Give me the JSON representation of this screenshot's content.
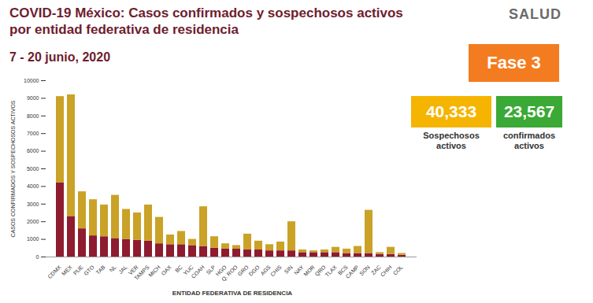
{
  "chart_data": {
    "type": "bar",
    "stacked": true,
    "title": [
      "COVID-19 México: Casos confirmados y sospechosos activos",
      "por entidad federativa de residencia"
    ],
    "subtitle": "7 - 20 junio, 2020",
    "logo": "SALUD",
    "phase": "Fase 3",
    "x_label": "ENTIDAD FEDERATIVA DE RESIDENCIA",
    "y_label": "CASOS CONFIRMADOS Y SOSPECHOSOS ACTIVOS",
    "categories": [
      "CDMX",
      "MEX",
      "PUE",
      "GTO",
      "TAB",
      "NL",
      "JAL",
      "VER",
      "TAMPS",
      "MICH",
      "OAX",
      "BC",
      "YUC",
      "COAH",
      "SLP",
      "HGO",
      "Q. ROO",
      "GRO",
      "DGO",
      "AGS",
      "CHIS",
      "SIN",
      "NAY",
      "MOR",
      "QRO",
      "TLAX",
      "BCS",
      "CAMP",
      "SON",
      "ZAC",
      "CHIH",
      "COL"
    ],
    "series": [
      {
        "name": "confirmados activos",
        "color": "#8e1b2f",
        "total": 23567,
        "total_label": "23,567",
        "values": [
          4200,
          2300,
          1600,
          1200,
          1150,
          1050,
          1000,
          950,
          900,
          750,
          700,
          700,
          650,
          600,
          500,
          450,
          450,
          400,
          400,
          350,
          350,
          350,
          250,
          250,
          250,
          250,
          200,
          200,
          200,
          150,
          150,
          100
        ]
      },
      {
        "name": "Sospechosos activos",
        "color": "#c9a227",
        "total": 40333,
        "total_label": "40,333",
        "values": [
          4900,
          6900,
          2100,
          2050,
          1800,
          2450,
          1700,
          1550,
          2050,
          1500,
          550,
          750,
          350,
          2250,
          650,
          300,
          200,
          900,
          500,
          350,
          500,
          1650,
          150,
          100,
          150,
          300,
          250,
          400,
          2450,
          100,
          400,
          100
        ]
      }
    ],
    "ylim": [
      0,
      10000
    ],
    "yticks": [
      0,
      1000,
      2000,
      3000,
      4000,
      5000,
      6000,
      7000,
      8000,
      9000,
      10000
    ],
    "grid": false
  }
}
